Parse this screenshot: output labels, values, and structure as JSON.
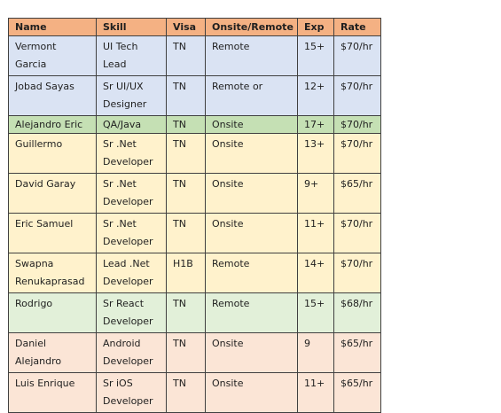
{
  "table": {
    "header": {
      "name": "Name",
      "skill": "Skill",
      "visa": "Visa",
      "mode": "Onsite/Remote",
      "exp": "Exp",
      "rate": "Rate"
    },
    "rows": [
      {
        "name": "Vermont Garcia",
        "skill": "UI Tech Lead",
        "visa": "TN",
        "mode": "Remote",
        "exp": "15+",
        "rate": "$70/hr"
      },
      {
        "name": "Jobad Sayas",
        "skill": "Sr UI/UX Designer",
        "visa": "TN",
        "mode": "Remote or",
        "exp": "12+",
        "rate": "$70/hr"
      },
      {
        "name": "Alejandro Eric",
        "skill": "QA/Java",
        "visa": "TN",
        "mode": "Onsite",
        "exp": "17+",
        "rate": "$70/hr"
      },
      {
        "name": "Guillermo",
        "skill": "Sr .Net Developer",
        "visa": "TN",
        "mode": "Onsite",
        "exp": "13+",
        "rate": "$70/hr"
      },
      {
        "name": "David Garay",
        "skill": "Sr .Net Developer",
        "visa": "TN",
        "mode": "Onsite",
        "exp": "9+",
        "rate": "$65/hr"
      },
      {
        "name": "Eric Samuel",
        "skill": "Sr .Net Developer",
        "visa": "TN",
        "mode": "Onsite",
        "exp": "11+",
        "rate": "$70/hr"
      },
      {
        "name": "Swapna Renukaprasad",
        "skill": "Lead .Net Developer",
        "visa": "H1B",
        "mode": "Remote",
        "exp": "14+",
        "rate": "$70/hr"
      },
      {
        "name": "Rodrigo",
        "skill": "Sr React Developer",
        "visa": "TN",
        "mode": "Remote",
        "exp": "15+",
        "rate": "$68/hr"
      },
      {
        "name": "Daniel Alejandro",
        "skill": "Android Developer",
        "visa": "TN",
        "mode": "Onsite",
        "exp": "9",
        "rate": "$65/hr"
      },
      {
        "name": "Luis Enrique",
        "skill": "Sr iOS Developer",
        "visa": "TN",
        "mode": "Onsite",
        "exp": "11+",
        "rate": "$65/hr"
      }
    ]
  },
  "colors": {
    "header_bg": "#f4b183",
    "blue_row": "#dae3f3",
    "green_row": "#c5e0b4",
    "yellow_row": "#fff2cc",
    "light_green_row": "#e2f0d9",
    "pink_row": "#fbe5d6",
    "border": "#404040"
  },
  "row_colors": [
    "blue_row",
    "blue_row",
    "green_row",
    "yellow_row",
    "yellow_row",
    "yellow_row",
    "yellow_row",
    "light_green_row",
    "pink_row",
    "pink_row"
  ]
}
